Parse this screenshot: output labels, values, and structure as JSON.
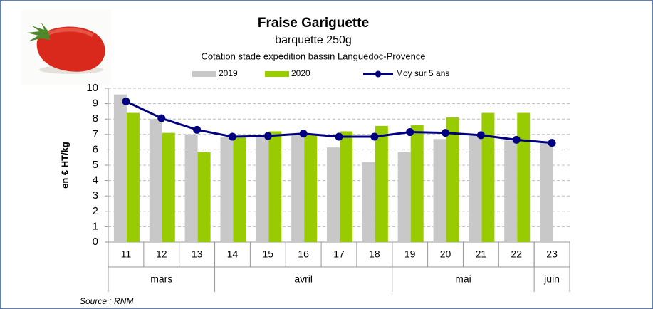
{
  "chart_data": {
    "type": "bar_line",
    "title": "Fraise Gariguette",
    "subtitle": "barquette 250g",
    "description": "Cotation stade expédition bassin Languedoc-Provence",
    "y_label": "en € HT/kg",
    "source": "Source : RNM",
    "groups": [
      {
        "label": "mars",
        "categories": [
          "11",
          "12",
          "13"
        ]
      },
      {
        "label": "avril",
        "categories": [
          "14",
          "15",
          "16",
          "17",
          "18"
        ]
      },
      {
        "label": "mai",
        "categories": [
          "19",
          "20",
          "21",
          "22"
        ]
      },
      {
        "label": "juin",
        "categories": [
          "23"
        ]
      }
    ],
    "series": [
      {
        "name": "2019",
        "type": "bar",
        "color": "#c8c8c8",
        "values": [
          9.6,
          8.0,
          7.0,
          6.8,
          6.8,
          7.0,
          6.15,
          5.2,
          5.85,
          6.7,
          6.9,
          6.6,
          6.5
        ]
      },
      {
        "name": "2020",
        "type": "bar",
        "color": "#99cc00",
        "values": [
          8.4,
          7.1,
          5.85,
          6.8,
          7.2,
          7.0,
          7.2,
          7.55,
          7.6,
          8.1,
          8.4,
          8.4,
          null
        ]
      },
      {
        "name": "Moy sur 5 ans",
        "type": "line",
        "color": "#000080",
        "values": [
          9.15,
          8.05,
          7.3,
          6.85,
          6.9,
          7.05,
          6.85,
          6.85,
          7.15,
          7.1,
          6.95,
          6.65,
          6.45
        ]
      }
    ],
    "ylim": [
      0,
      10
    ],
    "yticks": [
      0,
      1,
      2,
      3,
      4,
      5,
      6,
      7,
      8,
      9,
      10
    ],
    "grid": true
  }
}
